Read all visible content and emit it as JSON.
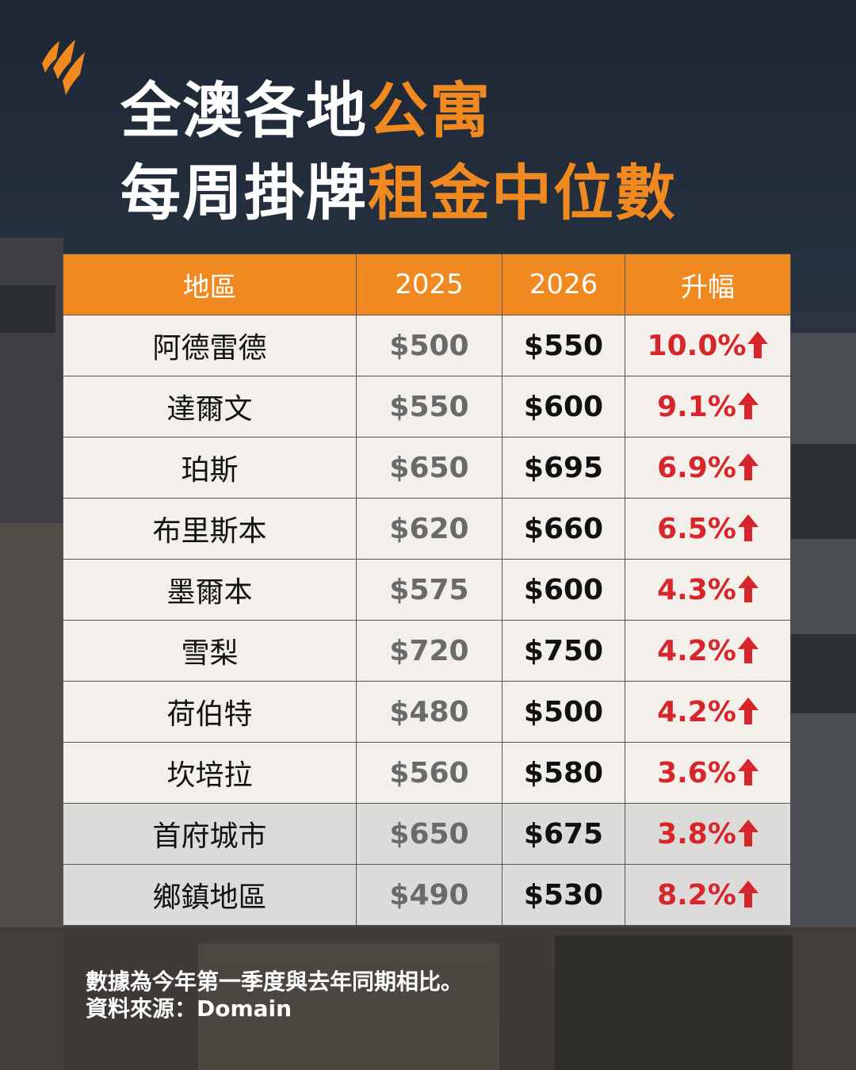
{
  "title": {
    "lines": [
      [
        "全澳各地",
        "公寓"
      ],
      [
        "每周掛牌",
        "租金中位數"
      ]
    ]
  },
  "table": {
    "columns": [
      "地區",
      "2025",
      "2026",
      "升幅"
    ],
    "rows": [
      [
        "阿德雷德",
        "$500",
        "$550",
        "10.0%"
      ],
      [
        "達爾文",
        "$550",
        "$600",
        "9.1%"
      ],
      [
        "珀斯",
        "$650",
        "$695",
        "6.9%"
      ],
      [
        "布里斯本",
        "$620",
        "$660",
        "6.5%"
      ],
      [
        "墨爾本",
        "$575",
        "$600",
        "4.3%"
      ],
      [
        "雪梨",
        "$720",
        "$750",
        "4.2%"
      ],
      [
        "荷伯特",
        "$480",
        "$500",
        "4.2%"
      ],
      [
        "坎培拉",
        "$560",
        "$580",
        "3.6%"
      ],
      [
        "首府城市",
        "$650",
        "$675",
        "3.8%"
      ],
      [
        "鄉鎮地區",
        "$490",
        "$530",
        "8.2%"
      ]
    ]
  },
  "footer": {
    "lines": [
      "數據為今年第一季度與去年同期相比。",
      "資料來源：Domain"
    ]
  }
}
